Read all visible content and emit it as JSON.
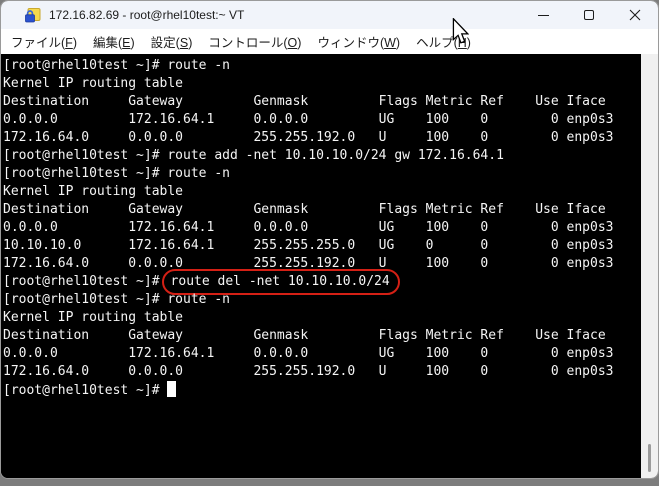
{
  "window": {
    "title": "172.16.82.69 - root@rhel10test:~ VT"
  },
  "menu": {
    "items": [
      {
        "name": "file",
        "prefix": "ファイル(",
        "key": "F",
        "suffix": ")"
      },
      {
        "name": "edit",
        "prefix": "編集(",
        "key": "E",
        "suffix": ")"
      },
      {
        "name": "setup",
        "prefix": "設定(",
        "key": "S",
        "suffix": ")"
      },
      {
        "name": "control",
        "prefix": "コントロール(",
        "key": "O",
        "suffix": ")"
      },
      {
        "name": "window",
        "prefix": "ウィンドウ(",
        "key": "W",
        "suffix": ")"
      },
      {
        "name": "help",
        "prefix": "ヘルプ(",
        "key": "H",
        "suffix": ")"
      }
    ]
  },
  "terminal": {
    "prompt": "[root@rhel10test ~]#",
    "lines": [
      {
        "text": "[root@rhel10test ~]# route -n"
      },
      {
        "text": "Kernel IP routing table"
      },
      {
        "text": "Destination     Gateway         Genmask         Flags Metric Ref    Use Iface"
      },
      {
        "text": "0.0.0.0         172.16.64.1     0.0.0.0         UG    100    0        0 enp0s3"
      },
      {
        "text": "172.16.64.0     0.0.0.0         255.255.192.0   U     100    0        0 enp0s3"
      },
      {
        "text": "[root@rhel10test ~]# route add -net 10.10.10.0/24 gw 172.16.64.1"
      },
      {
        "text": "[root@rhel10test ~]# route -n"
      },
      {
        "text": "Kernel IP routing table"
      },
      {
        "text": "Destination     Gateway         Genmask         Flags Metric Ref    Use Iface"
      },
      {
        "text": "0.0.0.0         172.16.64.1     0.0.0.0         UG    100    0        0 enp0s3"
      },
      {
        "text": "10.10.10.0      172.16.64.1     255.255.255.0   UG    0      0        0 enp0s3"
      },
      {
        "text": "172.16.64.0     0.0.0.0         255.255.192.0   U     100    0        0 enp0s3"
      },
      {
        "before": "[root@rhel10test ~]#",
        "highlight": "route del -net 10.10.10.0/24"
      },
      {
        "text": "[root@rhel10test ~]# route -n"
      },
      {
        "text": "Kernel IP routing table"
      },
      {
        "text": "Destination     Gateway         Genmask         Flags Metric Ref    Use Iface"
      },
      {
        "text": "0.0.0.0         172.16.64.1     0.0.0.0         UG    100    0        0 enp0s3"
      },
      {
        "text": "172.16.64.0     0.0.0.0         255.255.192.0   U     100    0        0 enp0s3"
      },
      {
        "text": "[root@rhel10test ~]# ",
        "cursor": true
      }
    ]
  },
  "colors": {
    "terminal_bg": "#000000",
    "terminal_text": "#f5f5f5",
    "highlight_oval": "#d42015",
    "titlebar_bg": "#f1f4fa",
    "menubar_bg": "#ffffff",
    "icon_yellow": "#f6d94d",
    "icon_blue": "#2b52cf"
  }
}
